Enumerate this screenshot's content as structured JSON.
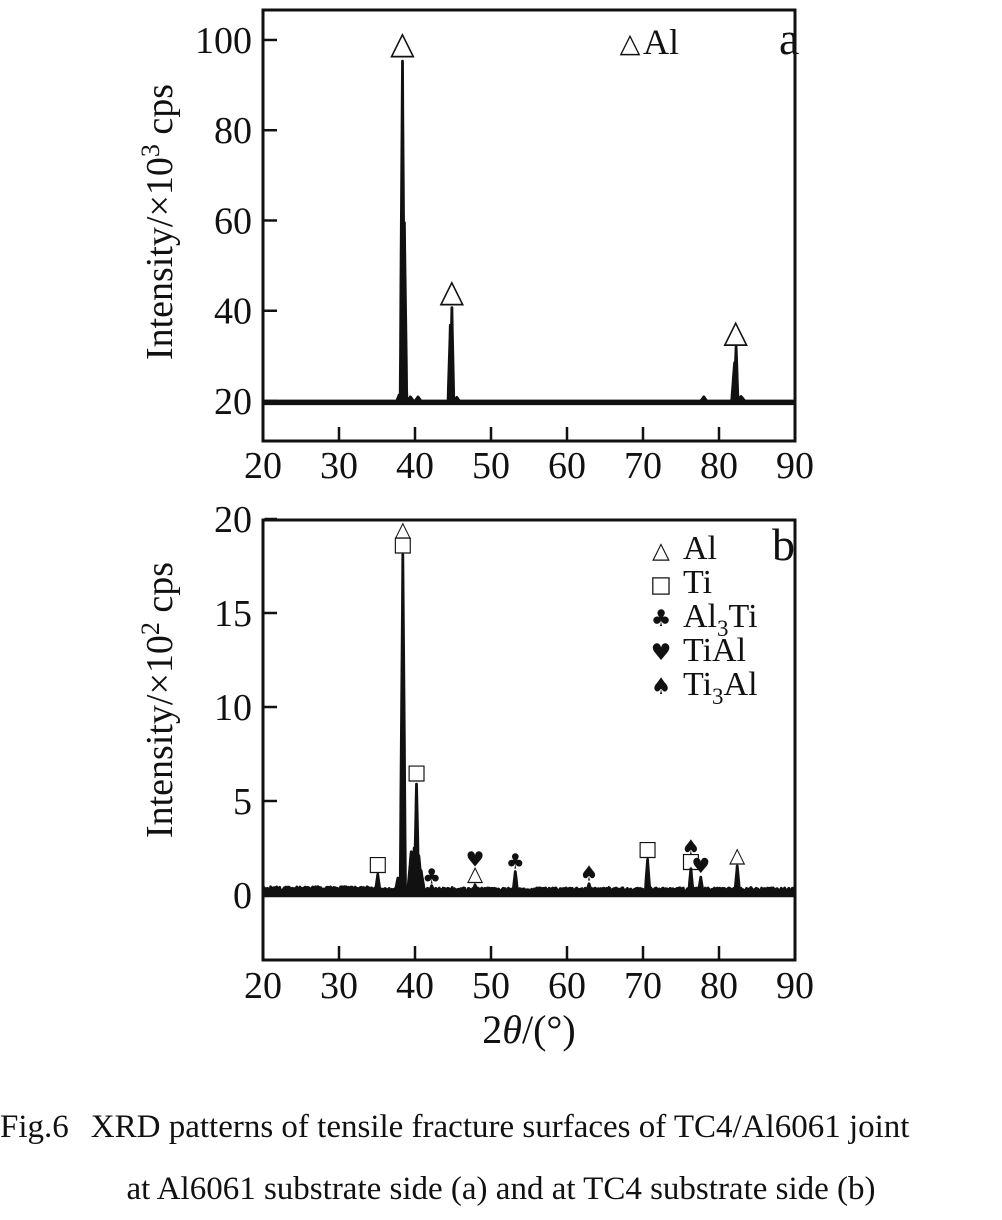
{
  "page": {
    "background": "#ffffff",
    "ink": "#111111"
  },
  "figure_caption": {
    "label": "Fig.6",
    "line1": "XRD patterns of tensile fracture surfaces of TC4/Al6061 joint",
    "line2": "at Al6061 substrate side (a) and at TC4 substrate side (b)"
  },
  "chart_data": [
    {
      "type": "line",
      "panel_label": "a",
      "title": "",
      "xlabel": "",
      "ylabel": {
        "base": "Intensity/×10",
        "exp": "3",
        "unit": " cps"
      },
      "xlim": [
        20,
        90
      ],
      "ylim": [
        11.4,
        106.6
      ],
      "xticks": [
        20,
        30,
        40,
        50,
        60,
        70,
        80,
        90
      ],
      "yticks": [
        20,
        40,
        60,
        80,
        100
      ],
      "grid": false,
      "legend_position": "top-inside",
      "legend": [
        {
          "symbol": "△",
          "pre": "Al",
          "sub": "",
          "post": ""
        }
      ],
      "baseline": 20,
      "noise_amp": 0,
      "fill_to": 19.4,
      "peaks": [
        [
          37.9,
          21.3,
          0.3
        ],
        [
          38.35,
          95.3,
          0.3
        ],
        [
          38.6,
          59.5,
          0.32
        ],
        [
          39.4,
          20.9,
          0.4
        ],
        [
          40.4,
          20.9,
          0.4
        ],
        [
          44.65,
          36.8,
          0.3
        ],
        [
          44.85,
          40.7,
          0.25
        ],
        [
          45.5,
          20.8,
          0.35
        ],
        [
          78.0,
          20.9,
          0.4
        ],
        [
          82.05,
          28.5,
          0.38
        ],
        [
          82.25,
          32.0,
          0.25
        ],
        [
          82.9,
          21.0,
          0.5
        ]
      ],
      "peak_markers": [
        {
          "symbol": "△",
          "x": 38.35,
          "y": 99.5
        },
        {
          "symbol": "△",
          "x": 44.85,
          "y": 44.5
        },
        {
          "symbol": "△",
          "x": 82.2,
          "y": 35.5
        }
      ]
    },
    {
      "type": "line",
      "panel_label": "b",
      "title": "",
      "xlabel_parts": [
        {
          "t": "2"
        },
        {
          "t": "θ",
          "italic": true
        },
        {
          "t": "/(°)"
        }
      ],
      "ylabel": {
        "base": "Intensity/×10",
        "exp": "2",
        "unit": " cps"
      },
      "xlim": [
        20,
        90
      ],
      "ylim": [
        -3.5,
        20.2
      ],
      "xticks": [
        20,
        30,
        40,
        50,
        60,
        70,
        80,
        90
      ],
      "yticks": [
        0,
        5,
        10,
        15,
        20
      ],
      "grid": false,
      "legend_position": "upper-right-inside",
      "legend": [
        {
          "symbol": "△",
          "pre": "Al",
          "sub": "",
          "post": ""
        },
        {
          "symbol": "□",
          "pre": "Ti",
          "sub": "",
          "post": ""
        },
        {
          "symbol": "♣",
          "pre": "Al",
          "sub": "3",
          "post": "Ti"
        },
        {
          "symbol": "♥",
          "pre": "TiAl",
          "sub": "",
          "post": ""
        },
        {
          "symbol": "♠",
          "pre": "Ti",
          "sub": "3",
          "post": "Al"
        }
      ],
      "baseline": 0.2,
      "noise_amp": 0.26,
      "fill_to": -0.05,
      "peaks": [
        [
          35.1,
          1.1,
          0.3
        ],
        [
          37.75,
          0.9,
          0.35
        ],
        [
          38.4,
          18.1,
          0.35
        ],
        [
          39.5,
          2.3,
          0.45
        ],
        [
          39.9,
          2.5,
          0.45
        ],
        [
          40.2,
          5.9,
          0.3
        ],
        [
          40.5,
          2.1,
          0.45
        ],
        [
          40.8,
          1.3,
          0.45
        ],
        [
          42.2,
          0.5,
          0.3
        ],
        [
          44.9,
          0.4,
          0.3
        ],
        [
          47.9,
          0.55,
          0.3
        ],
        [
          50.5,
          0.35,
          0.3
        ],
        [
          53.2,
          1.25,
          0.3
        ],
        [
          57.5,
          0.3,
          0.3
        ],
        [
          62.9,
          0.6,
          0.3
        ],
        [
          65.5,
          0.4,
          0.35
        ],
        [
          70.6,
          1.9,
          0.3
        ],
        [
          74.5,
          0.35,
          0.35
        ],
        [
          76.3,
          1.4,
          0.28
        ],
        [
          77.6,
          0.95,
          0.28
        ],
        [
          82.4,
          1.55,
          0.3
        ],
        [
          84.2,
          0.4,
          0.35
        ],
        [
          86.5,
          0.35,
          0.35
        ]
      ],
      "peak_markers": [
        {
          "symbol": "△",
          "x": 38.4,
          "y": 19.5
        },
        {
          "symbol": "□",
          "x": 38.4,
          "y": 18.7
        },
        {
          "symbol": "□",
          "x": 35.1,
          "y": 1.7
        },
        {
          "symbol": "□",
          "x": 40.2,
          "y": 6.55
        },
        {
          "symbol": "♣",
          "x": 42.2,
          "y": 1.0
        },
        {
          "symbol": "♥",
          "x": 47.9,
          "y": 1.9
        },
        {
          "symbol": "△",
          "x": 47.9,
          "y": 1.15
        },
        {
          "symbol": "♣",
          "x": 53.2,
          "y": 1.8
        },
        {
          "symbol": "♠",
          "x": 62.9,
          "y": 1.15
        },
        {
          "symbol": "□",
          "x": 70.6,
          "y": 2.5
        },
        {
          "symbol": "♠",
          "x": 76.3,
          "y": 2.55
        },
        {
          "symbol": "□",
          "x": 76.3,
          "y": 1.85
        },
        {
          "symbol": "♥",
          "x": 77.6,
          "y": 1.55
        },
        {
          "symbol": "△",
          "x": 82.4,
          "y": 2.15
        }
      ]
    }
  ]
}
